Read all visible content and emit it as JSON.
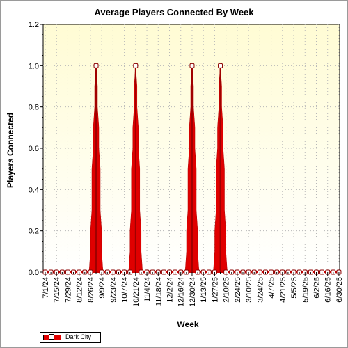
{
  "chart_data": {
    "type": "area",
    "title": "Average Players Connected By Week",
    "xlabel": "Week",
    "ylabel": "Players Connected",
    "ylim": [
      0,
      1.2
    ],
    "yticks": [
      "0.0",
      "0.2",
      "0.4",
      "0.6",
      "0.8",
      "1.0",
      "1.2"
    ],
    "grid": true,
    "legend_position": "bottom-left",
    "colors": {
      "series": "#e00000",
      "plot_background_top": "#fffcd4",
      "plot_background_bottom": "#ffffff"
    },
    "categories": [
      "7/1/24",
      "7/8/24",
      "7/15/24",
      "7/22/24",
      "7/29/24",
      "8/5/24",
      "8/12/24",
      "8/19/24",
      "8/26/24",
      "9/2/24",
      "9/9/24",
      "9/16/24",
      "9/23/24",
      "9/30/24",
      "10/7/24",
      "10/14/24",
      "10/21/24",
      "10/28/24",
      "11/4/24",
      "11/11/24",
      "11/18/24",
      "11/25/24",
      "12/2/24",
      "12/9/24",
      "12/16/24",
      "12/23/24",
      "12/30/24",
      "1/6/25",
      "1/13/25",
      "1/20/25",
      "1/27/25",
      "2/3/25",
      "2/10/25",
      "2/17/25",
      "2/24/25",
      "3/3/25",
      "3/10/25",
      "3/17/25",
      "3/24/25",
      "3/31/25",
      "4/7/25",
      "4/14/25",
      "4/21/25",
      "4/28/25",
      "5/5/25",
      "5/12/25",
      "5/19/25",
      "5/26/25",
      "6/2/25",
      "6/9/25",
      "6/16/25",
      "6/23/25",
      "6/30/25"
    ],
    "tick_labels": [
      "7/1/24",
      "7/15/24",
      "7/29/24",
      "8/12/24",
      "8/26/24",
      "9/9/24",
      "9/23/24",
      "10/7/24",
      "10/21/24",
      "11/4/24",
      "11/18/24",
      "12/2/24",
      "12/16/24",
      "12/30/24",
      "1/13/25",
      "1/27/25",
      "2/10/25",
      "2/24/25",
      "3/10/25",
      "3/24/25",
      "4/7/25",
      "4/21/25",
      "5/5/25",
      "5/19/25",
      "6/2/25",
      "6/16/25",
      "6/30/25"
    ],
    "series": [
      {
        "name": "Dark City",
        "values": [
          0,
          0,
          0,
          0,
          0,
          0,
          0,
          0,
          0,
          1,
          0,
          0,
          0,
          0,
          0,
          0,
          1,
          0,
          0,
          0,
          0,
          0,
          0,
          0,
          0,
          0,
          1,
          0,
          0,
          0,
          0,
          1,
          0,
          0,
          0,
          0,
          0,
          0,
          0,
          0,
          0,
          0,
          0,
          0,
          0,
          0,
          0,
          0,
          0,
          0,
          0,
          0,
          0
        ]
      }
    ]
  }
}
